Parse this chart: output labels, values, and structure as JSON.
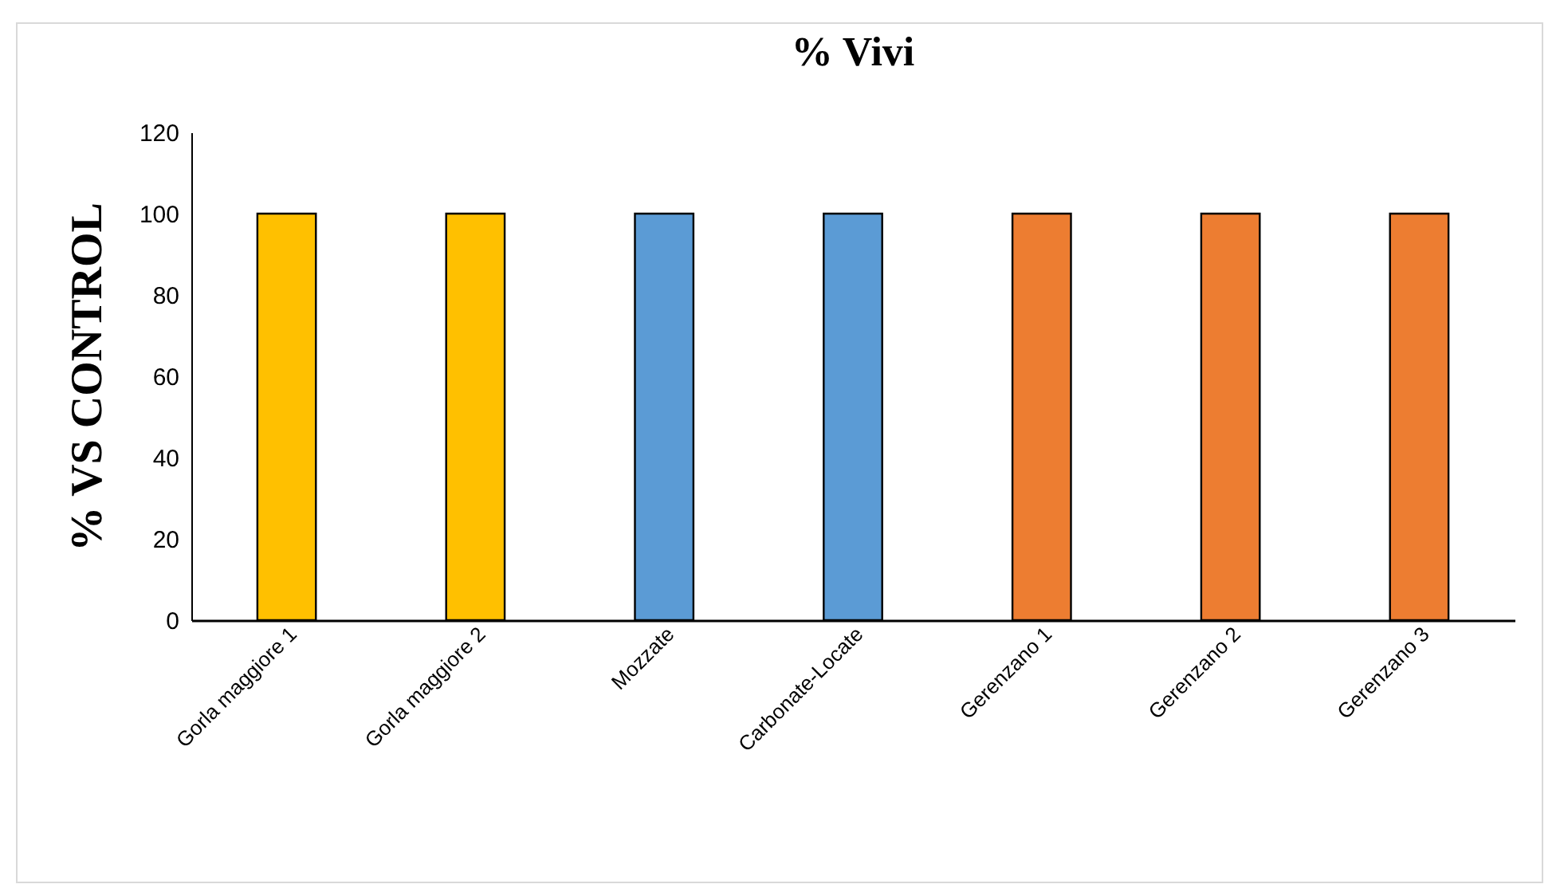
{
  "chart_data": {
    "type": "bar",
    "title": "% Vivi",
    "ylabel": "% VS CONTROL",
    "categories": [
      "Gorla maggiore 1",
      "Gorla maggiore 2",
      "Mozzate",
      "Carbonate-Locate",
      "Gerenzano 1",
      "Gerenzano 2",
      "Gerenzano 3"
    ],
    "values": [
      100,
      100,
      100,
      100,
      100,
      100,
      100
    ],
    "colors": [
      "#ffc000",
      "#ffc000",
      "#5b9bd5",
      "#5b9bd5",
      "#ed7d31",
      "#ed7d31",
      "#ed7d31"
    ],
    "ylim": [
      0,
      120
    ],
    "yticks": [
      0,
      20,
      40,
      60,
      80,
      100,
      120
    ],
    "grid": false
  }
}
